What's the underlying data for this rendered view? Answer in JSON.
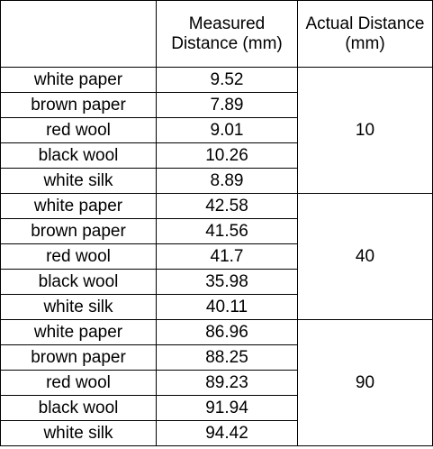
{
  "table": {
    "headers": {
      "material": "",
      "measured_line1": "Measured",
      "measured_line2": "Distance (mm)",
      "actual_line1": "Actual Distance",
      "actual_line2": "(mm)"
    },
    "groups": [
      {
        "actual": "10",
        "rows": [
          {
            "material": "white paper",
            "measured": "9.52"
          },
          {
            "material": "brown paper",
            "measured": "7.89"
          },
          {
            "material": "red wool",
            "measured": "9.01"
          },
          {
            "material": "black wool",
            "measured": "10.26"
          },
          {
            "material": "white silk",
            "measured": "8.89"
          }
        ]
      },
      {
        "actual": "40",
        "rows": [
          {
            "material": "white paper",
            "measured": "42.58"
          },
          {
            "material": "brown paper",
            "measured": "41.56"
          },
          {
            "material": "red wool",
            "measured": "41.7"
          },
          {
            "material": "black wool",
            "measured": "35.98"
          },
          {
            "material": "white silk",
            "measured": "40.11"
          }
        ]
      },
      {
        "actual": "90",
        "rows": [
          {
            "material": "white paper",
            "measured": "86.96"
          },
          {
            "material": "brown paper",
            "measured": "88.25"
          },
          {
            "material": "red wool",
            "measured": "89.23"
          },
          {
            "material": "black wool",
            "measured": "91.94"
          },
          {
            "material": "white silk",
            "measured": "94.42"
          }
        ]
      }
    ]
  }
}
